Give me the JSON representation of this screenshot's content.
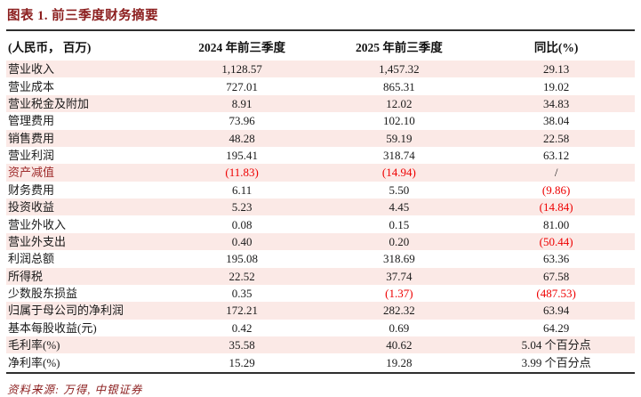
{
  "title": "图表 1. 前三季度财务摘要",
  "table": {
    "headers": [
      "(人民币， 百万)",
      "2024 年前三季度",
      "2025 年前三季度",
      "同比(%)"
    ],
    "rows": [
      {
        "label": "营业收入",
        "label_red": false,
        "values": [
          "1,128.57",
          "1,457.32",
          "29.13"
        ],
        "red": [
          false,
          false,
          false
        ]
      },
      {
        "label": "营业成本",
        "label_red": false,
        "values": [
          "727.01",
          "865.31",
          "19.02"
        ],
        "red": [
          false,
          false,
          false
        ]
      },
      {
        "label": "营业税金及附加",
        "label_red": false,
        "values": [
          "8.91",
          "12.02",
          "34.83"
        ],
        "red": [
          false,
          false,
          false
        ]
      },
      {
        "label": "管理费用",
        "label_red": false,
        "values": [
          "73.96",
          "102.10",
          "38.04"
        ],
        "red": [
          false,
          false,
          false
        ]
      },
      {
        "label": "销售费用",
        "label_red": false,
        "values": [
          "48.28",
          "59.19",
          "22.58"
        ],
        "red": [
          false,
          false,
          false
        ]
      },
      {
        "label": "营业利润",
        "label_red": false,
        "values": [
          "195.41",
          "318.74",
          "63.12"
        ],
        "red": [
          false,
          false,
          false
        ]
      },
      {
        "label": "资产减值",
        "label_red": true,
        "values": [
          "(11.83)",
          "(14.94)",
          "/"
        ],
        "red": [
          true,
          true,
          false
        ]
      },
      {
        "label": "财务费用",
        "label_red": false,
        "values": [
          "6.11",
          "5.50",
          "(9.86)"
        ],
        "red": [
          false,
          false,
          true
        ]
      },
      {
        "label": "投资收益",
        "label_red": false,
        "values": [
          "5.23",
          "4.45",
          "(14.84)"
        ],
        "red": [
          false,
          false,
          true
        ]
      },
      {
        "label": "营业外收入",
        "label_red": false,
        "values": [
          "0.08",
          "0.15",
          "81.00"
        ],
        "red": [
          false,
          false,
          false
        ]
      },
      {
        "label": "营业外支出",
        "label_red": false,
        "values": [
          "0.40",
          "0.20",
          "(50.44)"
        ],
        "red": [
          false,
          false,
          true
        ]
      },
      {
        "label": "利润总额",
        "label_red": false,
        "values": [
          "195.08",
          "318.69",
          "63.36"
        ],
        "red": [
          false,
          false,
          false
        ]
      },
      {
        "label": "所得税",
        "label_red": false,
        "values": [
          "22.52",
          "37.74",
          "67.58"
        ],
        "red": [
          false,
          false,
          false
        ]
      },
      {
        "label": "少数股东损益",
        "label_red": false,
        "values": [
          "0.35",
          "(1.37)",
          "(487.53)"
        ],
        "red": [
          false,
          true,
          true
        ]
      },
      {
        "label": "归属于母公司的净利润",
        "label_red": false,
        "values": [
          "172.21",
          "282.32",
          "63.94"
        ],
        "red": [
          false,
          false,
          false
        ]
      },
      {
        "label": "基本每股收益(元)",
        "label_red": false,
        "values": [
          "0.42",
          "0.69",
          "64.29"
        ],
        "red": [
          false,
          false,
          false
        ]
      },
      {
        "label": "毛利率(%)",
        "label_red": false,
        "values": [
          "35.58",
          "40.62",
          "5.04 个百分点"
        ],
        "red": [
          false,
          false,
          false
        ]
      },
      {
        "label": "净利率(%)",
        "label_red": false,
        "values": [
          "15.29",
          "19.28",
          "3.99 个百分点"
        ],
        "red": [
          false,
          false,
          false
        ]
      }
    ]
  },
  "footer": {
    "source": "资料来源: 万得, 中银证券"
  },
  "colors": {
    "title_maroon": "#8b1d1d",
    "row_stripe_pink": "#fbe9e6",
    "negative_red": "#ee0000",
    "asset_impairment_label_red": "#9e2b2b",
    "rule_dark": "#2e2e2e"
  }
}
